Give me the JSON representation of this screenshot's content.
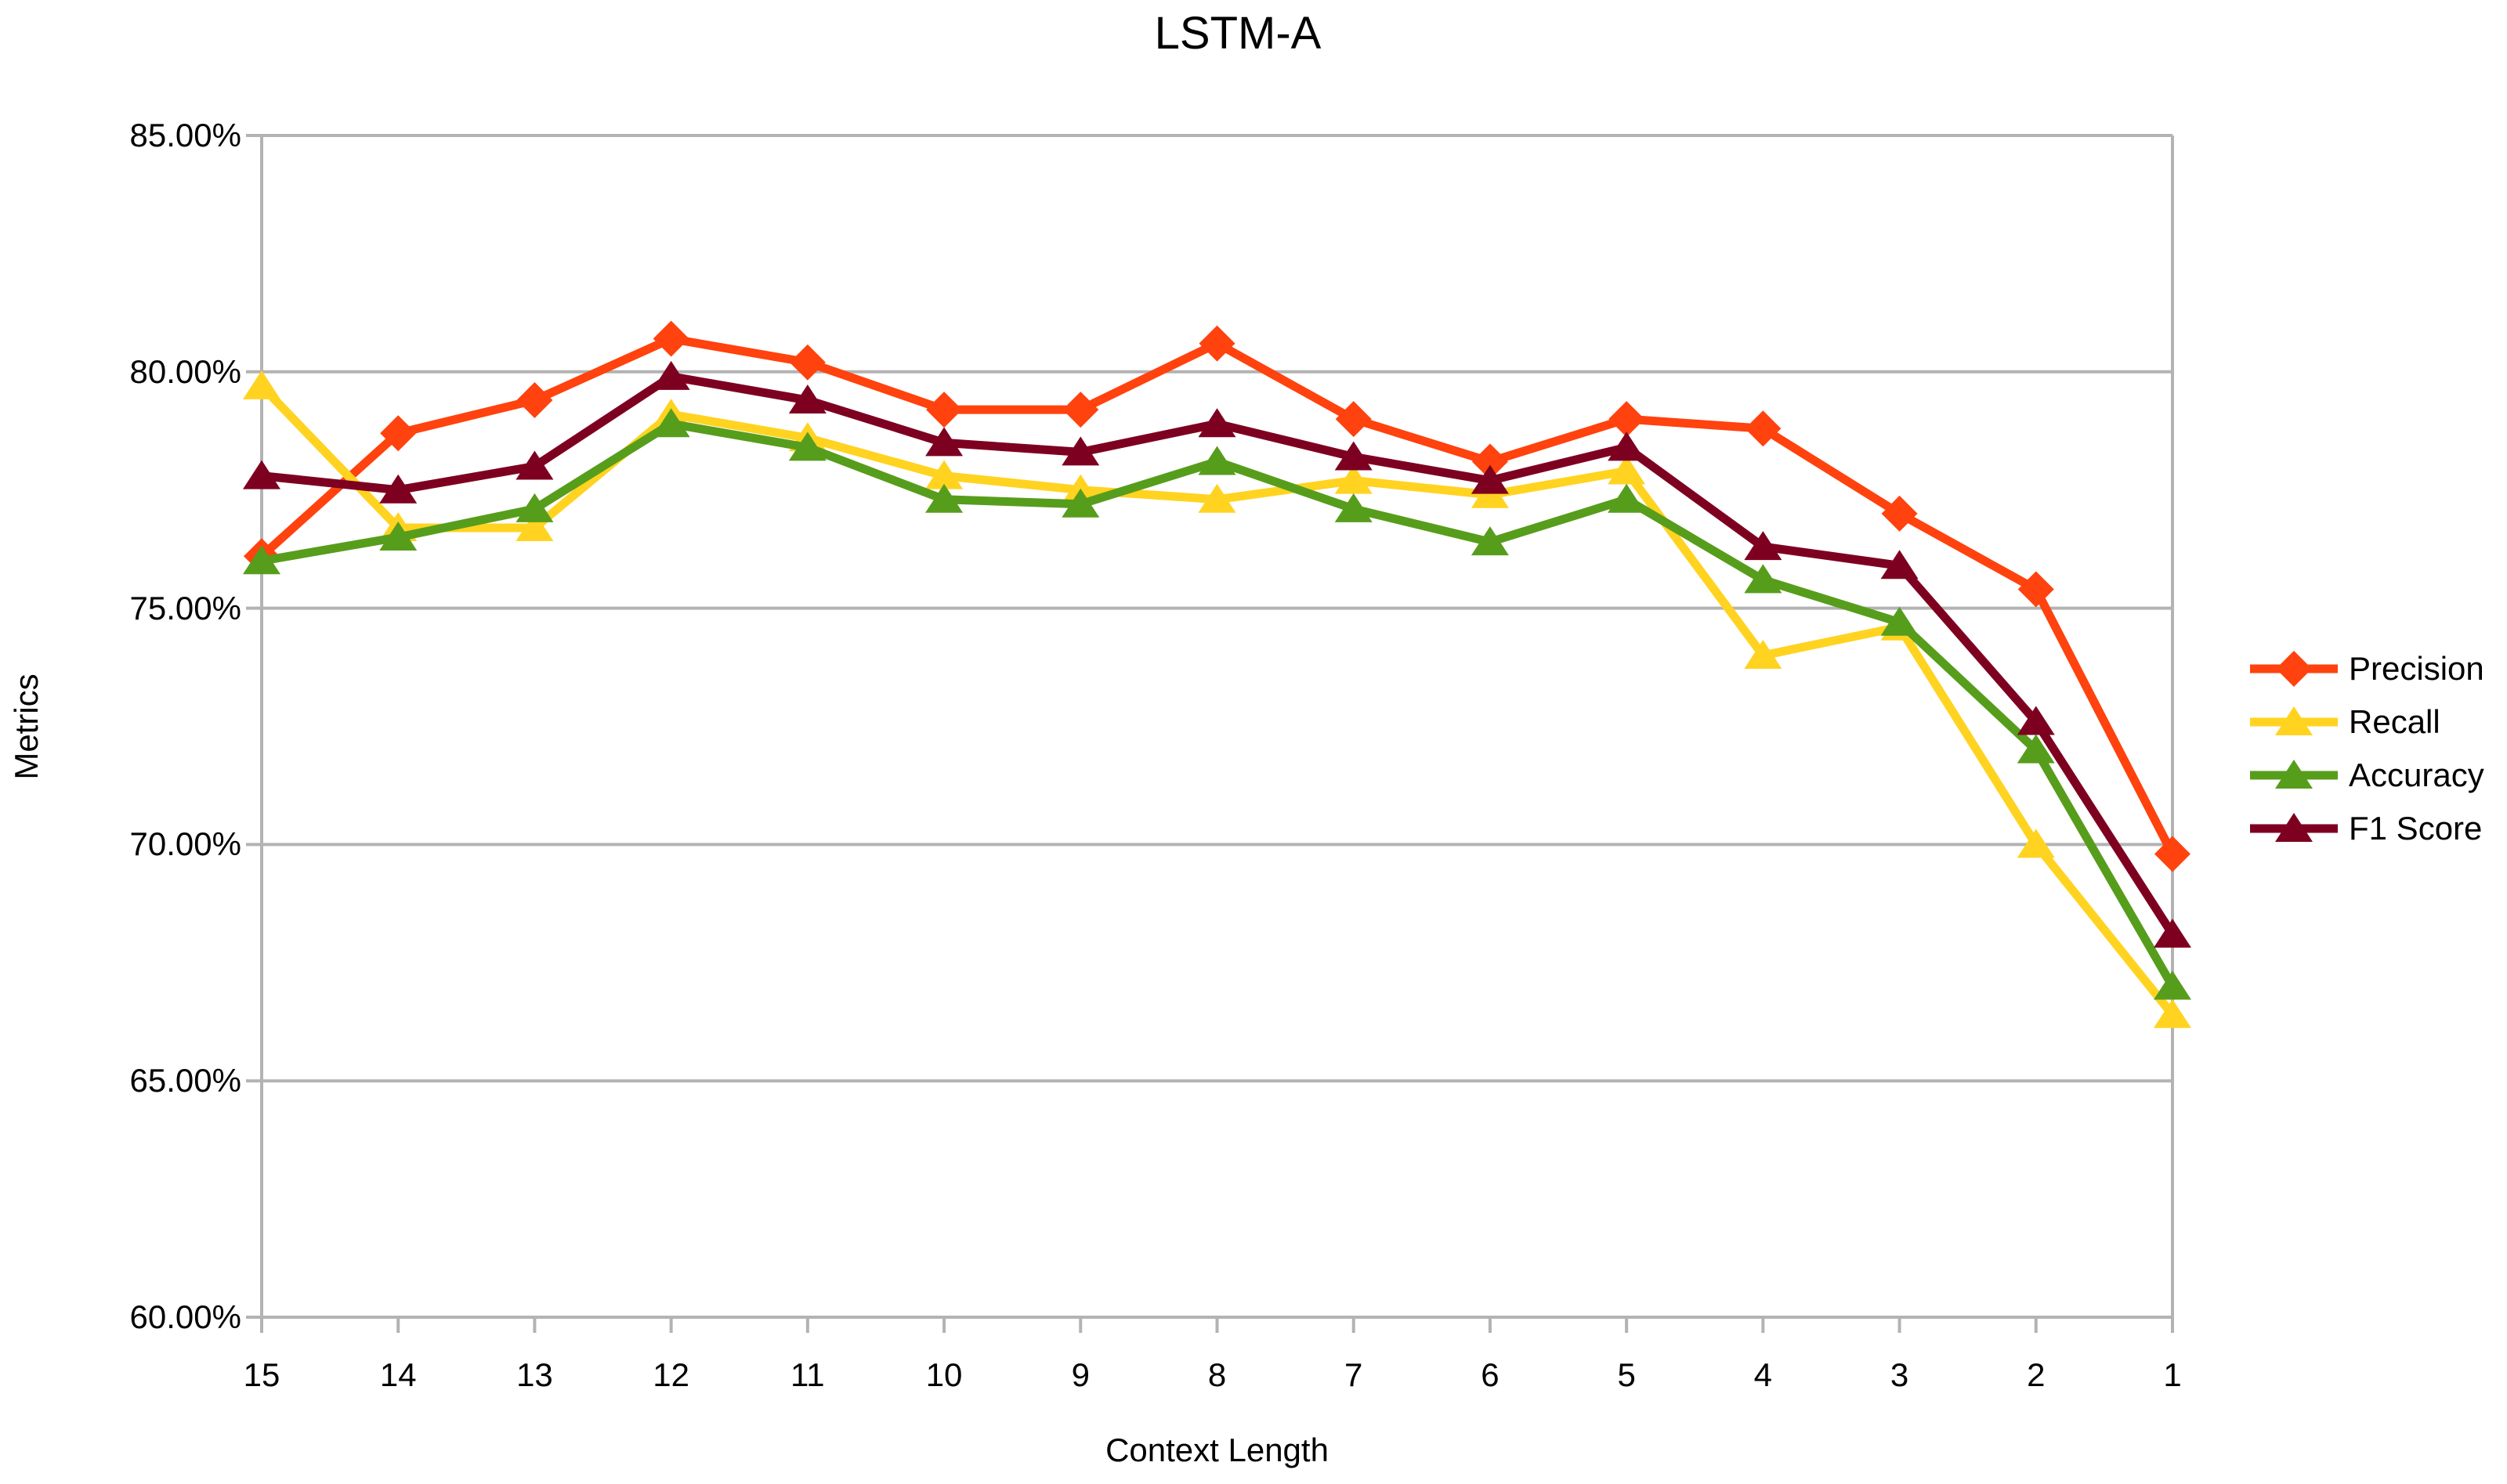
{
  "title": "LSTM-A",
  "chart_data": {
    "type": "line",
    "title": "LSTM-A",
    "xlabel": "Context Length",
    "ylabel": "Metrics",
    "categories": [
      "15",
      "14",
      "13",
      "12",
      "11",
      "10",
      "9",
      "8",
      "7",
      "6",
      "5",
      "4",
      "3",
      "2",
      "1"
    ],
    "x_axis_note": "categories run descending 15 to 1, left to right",
    "ylim": [
      60,
      85
    ],
    "y_tick_values": [
      85,
      80,
      75,
      70,
      65,
      60
    ],
    "y_tick_labels": [
      "85.00%",
      "80.00%",
      "75.00%",
      "70.00%",
      "65.00%",
      "60.00%"
    ],
    "grid": "horizontal",
    "legend_position": "right",
    "axis_color": "#b3b3b3",
    "text_color": "#000000",
    "series": [
      {
        "name": "Precision",
        "color": "#FF420E",
        "marker": "diamond",
        "values": [
          76.1,
          78.7,
          79.4,
          80.7,
          80.2,
          79.2,
          79.2,
          80.6,
          79.0,
          78.1,
          79.0,
          78.8,
          77.0,
          75.4,
          69.8
        ]
      },
      {
        "name": "Recall",
        "color": "#FFD320",
        "marker": "triangle",
        "values": [
          79.7,
          76.7,
          76.7,
          79.1,
          78.6,
          77.8,
          77.5,
          77.3,
          77.7,
          77.4,
          77.9,
          74.0,
          74.6,
          70.0,
          66.4
        ]
      },
      {
        "name": "Accuracy",
        "color": "#579D1C",
        "marker": "triangle",
        "values": [
          76.0,
          76.5,
          77.1,
          78.9,
          78.4,
          77.3,
          77.2,
          78.1,
          77.1,
          76.4,
          77.3,
          75.6,
          74.7,
          72.0,
          67.0
        ]
      },
      {
        "name": "F1 Score",
        "color": "#7E0021",
        "marker": "triangle",
        "values": [
          77.8,
          77.5,
          78.0,
          79.9,
          79.4,
          78.5,
          78.3,
          78.9,
          78.2,
          77.7,
          78.4,
          76.3,
          75.9,
          72.6,
          68.1
        ]
      }
    ]
  }
}
